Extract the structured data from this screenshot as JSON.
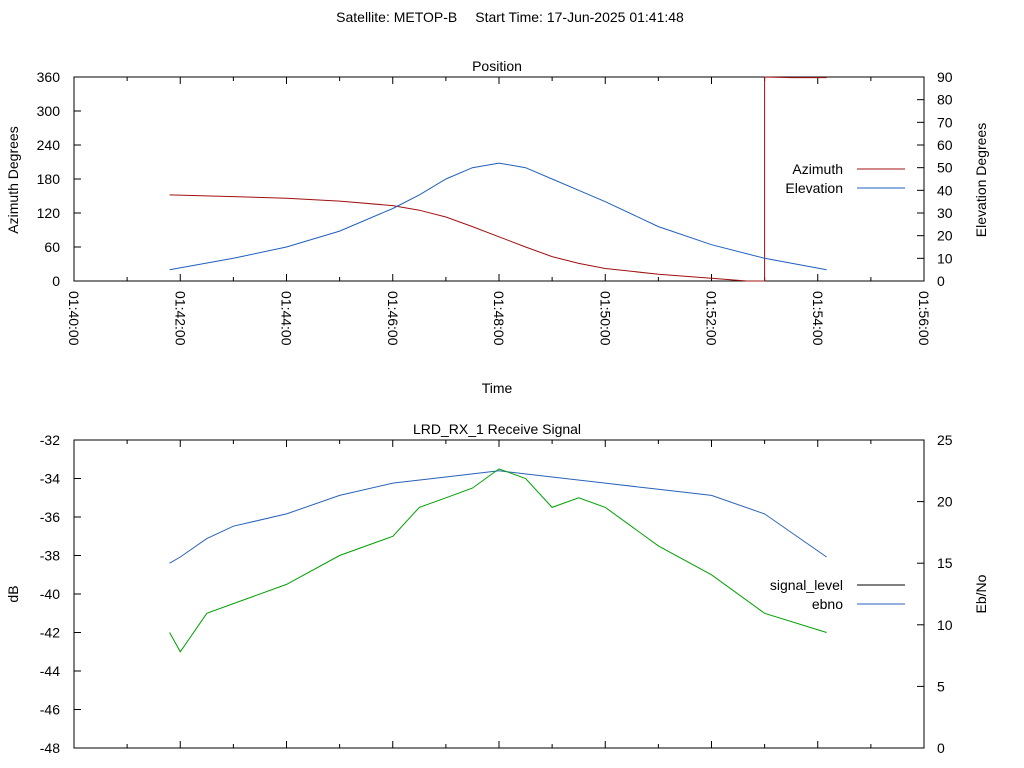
{
  "header": {
    "satellite": "Satellite: METOP-B",
    "start_time": "Start Time: 17-Jun-2025 01:41:48"
  },
  "colors": {
    "azimuth": "#a01010",
    "elevation": "#1f5fbf",
    "signal_level": "#000000",
    "ebno_line": "#2a62b8",
    "signal_trace": "#00a000"
  },
  "chart_data": [
    {
      "type": "line",
      "title": "Position",
      "xlabel": "Time",
      "ylabel": "Azimuth Degrees",
      "y2label": "Elevation Degrees",
      "x_ticks": [
        "01:40:00",
        "01:42:00",
        "01:44:00",
        "01:46:00",
        "01:48:00",
        "01:50:00",
        "01:52:00",
        "01:54:00",
        "01:56:00"
      ],
      "xlim": [
        "01:40:00",
        "01:56:00"
      ],
      "ylim": [
        0,
        360
      ],
      "y_ticks": [
        0,
        60,
        120,
        180,
        240,
        300,
        360
      ],
      "y2lim": [
        0,
        90
      ],
      "y2_ticks": [
        0,
        10,
        20,
        30,
        40,
        50,
        60,
        70,
        80,
        90
      ],
      "legend_position": "right",
      "series": [
        {
          "name": "Azimuth",
          "axis": "y",
          "x": [
            "01:41:48",
            "01:43:00",
            "01:44:00",
            "01:45:00",
            "01:46:00",
            "01:46:30",
            "01:47:00",
            "01:47:30",
            "01:48:00",
            "01:48:30",
            "01:49:00",
            "01:49:30",
            "01:50:00",
            "01:51:00",
            "01:52:00",
            "01:52:40",
            "01:53:00",
            "01:53:00",
            "01:53:30",
            "01:54:10"
          ],
          "values": [
            152,
            149,
            146,
            141,
            133,
            125,
            113,
            96,
            78,
            60,
            43,
            31,
            22,
            12,
            5,
            0,
            0,
            360,
            359,
            359
          ]
        },
        {
          "name": "Elevation",
          "axis": "y2",
          "x": [
            "01:41:48",
            "01:43:00",
            "01:44:00",
            "01:45:00",
            "01:46:00",
            "01:46:30",
            "01:47:00",
            "01:47:30",
            "01:48:00",
            "01:48:30",
            "01:49:00",
            "01:49:30",
            "01:50:00",
            "01:51:00",
            "01:52:00",
            "01:53:00",
            "01:54:10"
          ],
          "values": [
            5,
            10,
            15,
            22,
            32,
            38,
            45,
            50,
            52,
            50,
            45,
            40,
            35,
            24,
            16,
            10,
            5
          ]
        }
      ]
    },
    {
      "type": "line",
      "title": "LRD_RX_1 Receive Signal",
      "ylabel": "dB",
      "y2label": "Eb/No",
      "xlim": [
        "01:40:00",
        "01:56:00"
      ],
      "ylim": [
        -48,
        -32
      ],
      "y_ticks": [
        -48,
        -46,
        -44,
        -42,
        -40,
        -38,
        -36,
        -34,
        -32
      ],
      "y2lim": [
        0,
        25
      ],
      "y2_ticks": [
        0,
        5,
        10,
        15,
        20,
        25
      ],
      "legend_position": "right",
      "series": [
        {
          "name": "signal_level",
          "axis": "y",
          "x": [
            "01:41:48",
            "01:42:00",
            "01:42:30",
            "01:43:00",
            "01:44:00",
            "01:45:00",
            "01:46:00",
            "01:46:30",
            "01:47:00",
            "01:47:30",
            "01:48:00",
            "01:48:30",
            "01:49:00",
            "01:49:30",
            "01:50:00",
            "01:51:00",
            "01:52:00",
            "01:53:00",
            "01:54:10"
          ],
          "values": [
            -42,
            -43,
            -41,
            -40.5,
            -39.5,
            -38,
            -37,
            -35.5,
            -35,
            -34.5,
            -33.5,
            -34,
            -35.5,
            -35,
            -35.5,
            -37.5,
            -39,
            -41,
            -42
          ]
        },
        {
          "name": "ebno",
          "axis": "y2",
          "x": [
            "01:41:48",
            "01:42:00",
            "01:42:30",
            "01:43:00",
            "01:44:00",
            "01:45:00",
            "01:46:00",
            "01:47:00",
            "01:48:00",
            "01:49:00",
            "01:50:00",
            "01:51:00",
            "01:52:00",
            "01:53:00",
            "01:54:10"
          ],
          "values": [
            15,
            15.5,
            17,
            18,
            19,
            20.5,
            21.5,
            22,
            22.5,
            22,
            21.5,
            21,
            20.5,
            19,
            15.5
          ]
        }
      ]
    }
  ]
}
